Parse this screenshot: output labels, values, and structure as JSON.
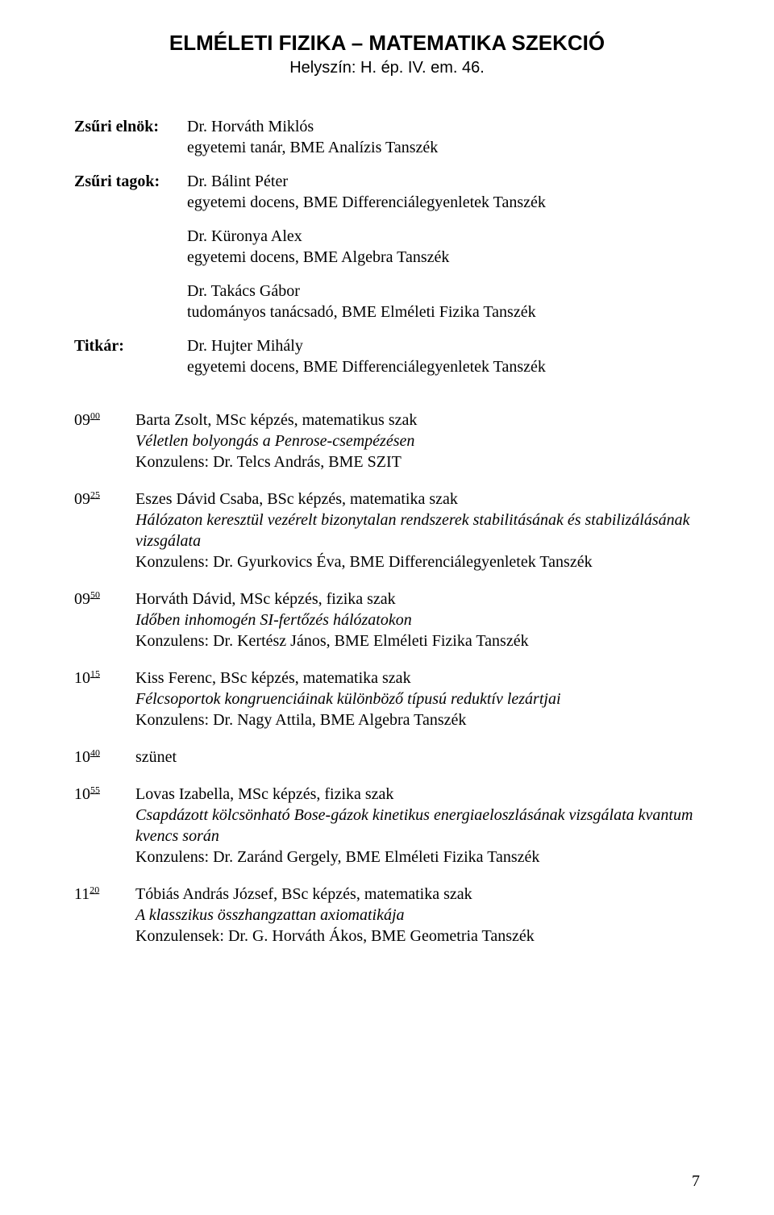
{
  "header": {
    "section_title": "ELMÉLETI FIZIKA – MATEMATIKA SZEKCIÓ",
    "location": "Helyszín: H. ép. IV. em. 46."
  },
  "jury": [
    {
      "role": "Zsűri elnök:",
      "people": [
        {
          "name": "Dr. Horváth Miklós",
          "title": "egyetemi tanár, BME Analízis Tanszék"
        }
      ]
    },
    {
      "role": "Zsűri tagok:",
      "people": [
        {
          "name": "Dr. Bálint Péter",
          "title": "egyetemi docens, BME Differenciálegyenletek Tanszék"
        },
        {
          "name": "Dr. Küronya Alex",
          "title": "egyetemi docens, BME Algebra Tanszék"
        },
        {
          "name": "Dr. Takács Gábor",
          "title": "tudományos tanácsadó, BME Elméleti Fizika Tanszék"
        }
      ]
    },
    {
      "role": "Titkár:",
      "people": [
        {
          "name": "Dr. Hujter Mihály",
          "title": "egyetemi docens, BME Differenciálegyenletek Tanszék"
        }
      ]
    }
  ],
  "schedule": [
    {
      "time_hour": "09",
      "time_min": "00",
      "presenter": "Barta Zsolt, MSc képzés, matematikus szak",
      "talk_title": "Véletlen bolyongás a Penrose-csempézésen",
      "consultant": "Konzulens: Dr. Telcs András, BME SZIT"
    },
    {
      "time_hour": "09",
      "time_min": "25",
      "presenter": "Eszes Dávid Csaba, BSc képzés, matematika szak",
      "talk_title": "Hálózaton keresztül vezérelt bizonytalan rendszerek stabilitásának és stabilizálásának vizsgálata",
      "consultant": "Konzulens: Dr. Gyurkovics Éva, BME Differenciálegyenletek Tanszék"
    },
    {
      "time_hour": "09",
      "time_min": "50",
      "presenter": "Horváth Dávid, MSc képzés, fizika szak",
      "talk_title": "Időben inhomogén SI-fertőzés hálózatokon",
      "consultant": "Konzulens: Dr. Kertész János, BME Elméleti Fizika Tanszék"
    },
    {
      "time_hour": "10",
      "time_min": "15",
      "presenter": "Kiss Ferenc, BSc képzés, matematika szak",
      "talk_title": "Félcsoportok kongruenciáinak különböző típusú reduktív lezártjai",
      "consultant": "Konzulens: Dr. Nagy Attila, BME Algebra Tanszék"
    },
    {
      "time_hour": "10",
      "time_min": "40",
      "presenter": "szünet",
      "talk_title": "",
      "consultant": ""
    },
    {
      "time_hour": "10",
      "time_min": "55",
      "presenter": " Lovas Izabella, MSc képzés, fizika szak",
      "talk_title": "Csapdázott kölcsönható Bose-gázok kinetikus energiaeloszlásának vizsgálata kvantum kvencs során",
      "consultant": "Konzulens: Dr. Zaránd Gergely, BME Elméleti Fizika Tanszék"
    },
    {
      "time_hour": "11",
      "time_min": "20",
      "presenter": "Tóbiás András József, BSc képzés, matematika szak",
      "talk_title": "A klasszikus összhangzattan axiomatikája",
      "consultant": "Konzulensek: Dr. G. Horváth Ákos, BME Geometria Tanszék"
    }
  ],
  "page_number": "7"
}
